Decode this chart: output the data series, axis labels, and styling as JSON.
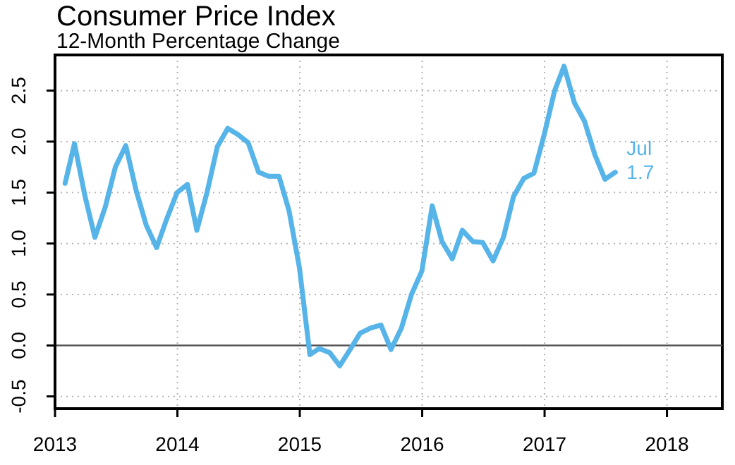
{
  "chart_data": {
    "type": "line",
    "title": "Consumer Price Index",
    "subtitle": "12-Month Percentage Change",
    "x": [
      "2013-01-31",
      "2013-02-28",
      "2013-03-31",
      "2013-04-30",
      "2013-05-31",
      "2013-06-30",
      "2013-07-31",
      "2013-08-31",
      "2013-09-30",
      "2013-10-31",
      "2013-11-30",
      "2013-12-31",
      "2014-01-31",
      "2014-02-28",
      "2014-03-31",
      "2014-04-30",
      "2014-05-31",
      "2014-06-30",
      "2014-07-31",
      "2014-08-31",
      "2014-09-30",
      "2014-10-31",
      "2014-11-30",
      "2014-12-31",
      "2015-01-31",
      "2015-02-28",
      "2015-03-31",
      "2015-04-30",
      "2015-05-31",
      "2015-06-30",
      "2015-07-31",
      "2015-08-31",
      "2015-09-30",
      "2015-10-31",
      "2015-11-30",
      "2015-12-31",
      "2016-01-31",
      "2016-02-29",
      "2016-03-31",
      "2016-04-30",
      "2016-05-31",
      "2016-06-30",
      "2016-07-31",
      "2016-08-31",
      "2016-09-30",
      "2016-10-31",
      "2016-11-30",
      "2016-12-31",
      "2017-01-31",
      "2017-02-28",
      "2017-03-31",
      "2017-04-30",
      "2017-05-31",
      "2017-06-30",
      "2017-07-31"
    ],
    "values": [
      1.59,
      1.98,
      1.47,
      1.06,
      1.36,
      1.75,
      1.96,
      1.52,
      1.18,
      0.96,
      1.24,
      1.5,
      1.58,
      1.13,
      1.51,
      1.95,
      2.13,
      2.07,
      1.99,
      1.7,
      1.66,
      1.66,
      1.32,
      0.76,
      -0.09,
      -0.03,
      -0.07,
      -0.2,
      -0.04,
      0.12,
      0.17,
      0.2,
      -0.04,
      0.17,
      0.5,
      0.73,
      1.37,
      1.02,
      0.85,
      1.13,
      1.02,
      1.01,
      0.83,
      1.06,
      1.46,
      1.64,
      1.69,
      2.07,
      2.5,
      2.74,
      2.38,
      2.2,
      1.87,
      1.63,
      1.7
    ],
    "color": "#56b4e9",
    "xlim": [
      "2013",
      "2018-06-15"
    ],
    "xticks": [
      "2013",
      "2014",
      "2015",
      "2016",
      "2017",
      "2018"
    ],
    "ylim": [
      -0.62,
      2.85
    ],
    "yticks": [
      -0.5,
      {
        "value": 0,
        "label": "0.0"
      },
      0.5,
      {
        "value": 1,
        "label": "1.0"
      },
      1.5,
      {
        "value": 2,
        "label": "2.0"
      },
      2.5
    ],
    "grid": true,
    "ref_lines": [
      {
        "axis": "y",
        "value": 0,
        "color": "#555555"
      }
    ],
    "annotations": [
      {
        "text": "Jul",
        "x": "2017-07-31",
        "y": 1.7
      },
      {
        "text": "1.7",
        "x": "2017-07-31",
        "y": 1.7
      }
    ]
  }
}
